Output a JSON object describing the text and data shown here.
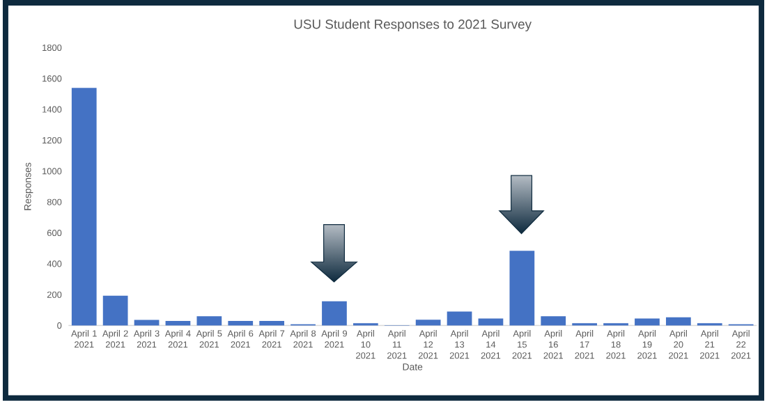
{
  "chart_data": {
    "type": "bar",
    "title": "USU Student Responses to 2021 Survey",
    "xlabel": "Date",
    "ylabel": "Responses",
    "categories": [
      "April 1 2021",
      "April 2 2021",
      "April 3 2021",
      "April 4 2021",
      "April 5 2021",
      "April 6 2021",
      "April 7 2021",
      "April 8 2021",
      "April 9 2021",
      "April 10 2021",
      "April 11 2021",
      "April 12 2021",
      "April 13 2021",
      "April 14 2021",
      "April 15 2021",
      "April 16 2021",
      "April 17 2021",
      "April 18 2021",
      "April 19 2021",
      "April 20 2021",
      "April 21 2021",
      "April 22 2021"
    ],
    "values": [
      1540,
      193,
      37,
      30,
      60,
      30,
      30,
      8,
      157,
      15,
      3,
      38,
      91,
      45,
      484,
      60,
      15,
      15,
      46,
      53,
      15,
      8
    ],
    "color": "#4472c4",
    "ylim": [
      0,
      1800
    ],
    "yticks": [
      0,
      200,
      400,
      600,
      800,
      1000,
      1200,
      1400,
      1600,
      1800
    ]
  }
}
